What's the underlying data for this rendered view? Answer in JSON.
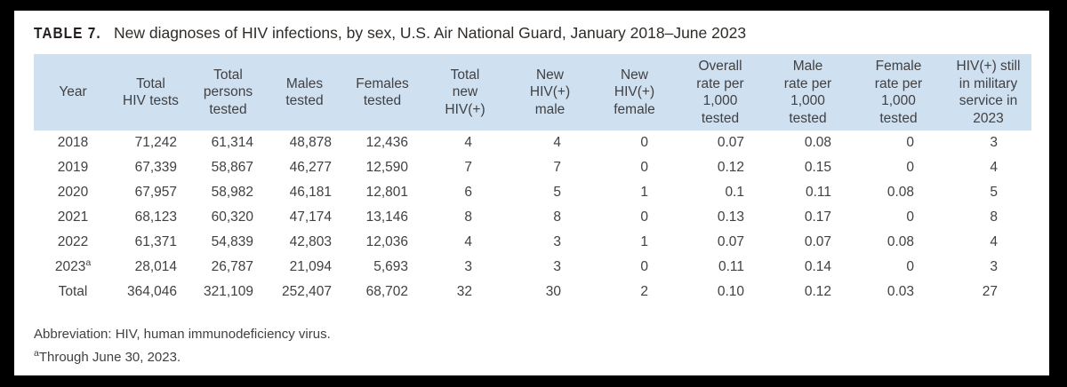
{
  "title": {
    "tag": "TABLE 7.",
    "text": "New diagnoses of HIV infections, by sex, U.S. Air National Guard, January 2018–June 2023"
  },
  "table": {
    "header_bg_color": "#cfe0f1",
    "text_color": "#414042",
    "header": [
      "Year",
      "Total\nHIV tests",
      "Total\npersons\ntested",
      "Males\ntested",
      "Females\ntested",
      "Total\nnew\nHIV(+)",
      "New\nHIV(+)\nmale",
      "New\nHIV(+)\nfemale",
      "Overall\nrate per\n1,000\ntested",
      "Male\nrate per\n1,000\ntested",
      "Female\nrate per\n1,000\ntested",
      "HIV(+) still\nin military\nservice in\n2023"
    ],
    "rows": [
      {
        "year": "2018",
        "year_sup": "",
        "values": [
          "71,242",
          "61,314",
          "48,878",
          "12,436",
          "4",
          "4",
          "0",
          "0.07",
          "0.08",
          "0",
          "3"
        ]
      },
      {
        "year": "2019",
        "year_sup": "",
        "values": [
          "67,339",
          "58,867",
          "46,277",
          "12,590",
          "7",
          "7",
          "0",
          "0.12",
          "0.15",
          "0",
          "4"
        ]
      },
      {
        "year": "2020",
        "year_sup": "",
        "values": [
          "67,957",
          "58,982",
          "46,181",
          "12,801",
          "6",
          "5",
          "1",
          "0.1",
          "0.11",
          "0.08",
          "5"
        ]
      },
      {
        "year": "2021",
        "year_sup": "",
        "values": [
          "68,123",
          "60,320",
          "47,174",
          "13,146",
          "8",
          "8",
          "0",
          "0.13",
          "0.17",
          "0",
          "8"
        ]
      },
      {
        "year": "2022",
        "year_sup": "",
        "values": [
          "61,371",
          "54,839",
          "42,803",
          "12,036",
          "4",
          "3",
          "1",
          "0.07",
          "0.07",
          "0.08",
          "4"
        ]
      },
      {
        "year": "2023",
        "year_sup": "a",
        "values": [
          "28,014",
          "26,787",
          "21,094",
          "5,693",
          "3",
          "3",
          "0",
          "0.11",
          "0.14",
          "0",
          "3"
        ]
      },
      {
        "year": "Total",
        "year_sup": "",
        "values": [
          "364,046",
          "321,109",
          "252,407",
          "68,702",
          "32",
          "30",
          "2",
          "0.10",
          "0.12",
          "0.03",
          "27"
        ]
      }
    ]
  },
  "footnotes": [
    {
      "sup": "",
      "text": "Abbreviation: HIV, human immunodeficiency virus."
    },
    {
      "sup": "a",
      "text": "Through June 30, 2023."
    }
  ]
}
